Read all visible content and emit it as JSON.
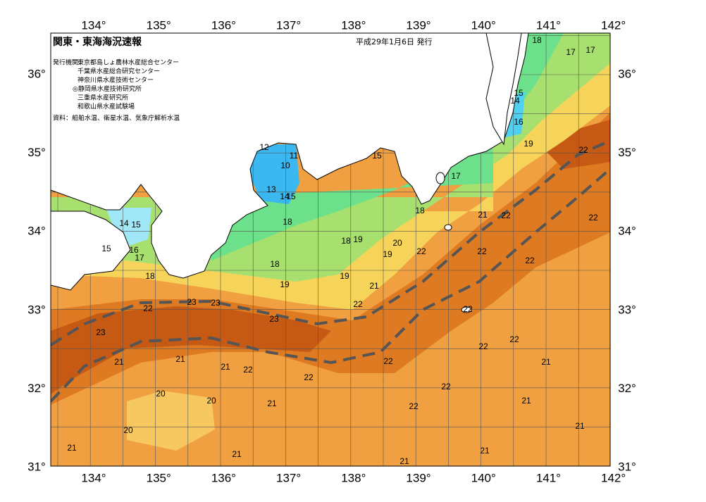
{
  "header": {
    "title": "関東・東海海況速報",
    "date": "平成29年1月6日 発行"
  },
  "issuers": {
    "label": "発行機関：",
    "items": [
      "東京都島しょ農林水産総合センター",
      "千葉県水産総合研究センター",
      "神奈川県水産技術センター",
      "◎静岡県水産技術研究所",
      "三重県水産研究所",
      "和歌山県水産試験場"
    ]
  },
  "source": "資料：船舶水温、衛星水温、気象庁解析水温",
  "axes": {
    "lon_ticks": [
      "134°",
      "135°",
      "136°",
      "137°",
      "138°",
      "139°",
      "140°",
      "141°",
      "142°"
    ],
    "lat_ticks": [
      "31°",
      "32°",
      "33°",
      "34°",
      "35°",
      "36°"
    ]
  },
  "contour_labels": [
    18,
    17,
    17,
    15,
    14,
    16,
    19,
    22,
    12,
    11,
    10,
    15,
    17,
    13,
    14,
    15,
    18,
    21,
    22,
    22,
    14,
    15,
    18,
    15,
    16,
    17,
    18,
    19,
    20,
    19,
    22,
    22,
    22,
    18,
    18,
    19,
    21,
    19,
    22,
    23,
    23,
    22,
    22,
    23,
    23,
    22,
    22,
    21,
    21,
    21,
    22,
    22,
    21,
    22,
    22,
    20,
    20,
    21,
    21,
    22,
    21,
    20,
    21,
    21,
    21,
    21
  ]
}
